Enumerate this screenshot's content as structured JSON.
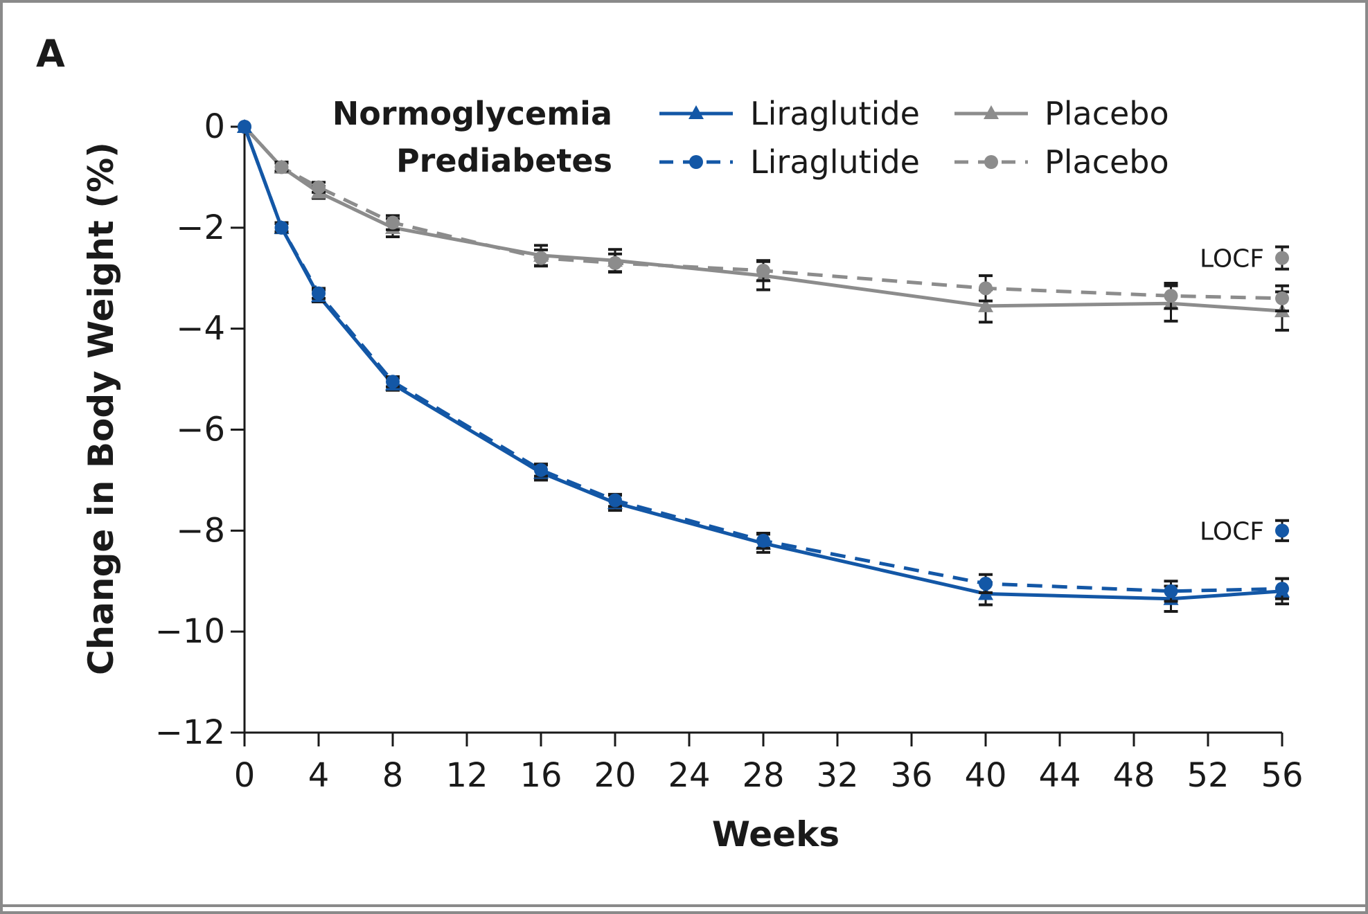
{
  "chart_data": {
    "type": "line",
    "panel_label": "A",
    "title": "",
    "xlabel": "Weeks",
    "ylabel": "Change in Body Weight (%)",
    "xlim": [
      0,
      56
    ],
    "ylim": [
      -12,
      0
    ],
    "x_ticks": [
      0,
      4,
      8,
      12,
      16,
      20,
      24,
      28,
      32,
      36,
      40,
      44,
      48,
      52,
      56
    ],
    "y_ticks": [
      0,
      -2,
      -4,
      -6,
      -8,
      -10,
      -12
    ],
    "y_tick_labels": [
      "0",
      "−2",
      "−4",
      "−6",
      "−8",
      "−10",
      "−12"
    ],
    "grid": false,
    "legend": {
      "position": "top",
      "rows": [
        {
          "header": "Normoglycemia",
          "style": "solid",
          "marker": "triangle"
        },
        {
          "header": "Prediabetes",
          "style": "dashed",
          "marker": "circle"
        }
      ]
    },
    "colors": {
      "liraglutide": "#1357a6",
      "placebo": "#8c8c8c",
      "error_bar": "#1a1a1a",
      "axis": "#1a1a1a"
    },
    "series": [
      {
        "name": "Liraglutide",
        "group": "Normoglycemia",
        "color_key": "liraglutide",
        "style": "solid",
        "marker": "triangle",
        "x": [
          0,
          2,
          4,
          8,
          16,
          20,
          28,
          40,
          50,
          56
        ],
        "y": [
          0,
          -2.0,
          -3.35,
          -5.1,
          -6.85,
          -7.45,
          -8.25,
          -9.25,
          -9.35,
          -9.2
        ],
        "err": [
          0,
          0.1,
          0.12,
          0.12,
          0.15,
          0.15,
          0.18,
          0.22,
          0.25,
          0.25
        ]
      },
      {
        "name": "Liraglutide",
        "group": "Prediabetes",
        "color_key": "liraglutide",
        "style": "dashed",
        "marker": "circle",
        "x": [
          0,
          2,
          4,
          8,
          16,
          20,
          28,
          40,
          50,
          56
        ],
        "y": [
          0,
          -2.0,
          -3.3,
          -5.05,
          -6.8,
          -7.4,
          -8.2,
          -9.05,
          -9.2,
          -9.15
        ],
        "err": [
          0,
          0.08,
          0.1,
          0.1,
          0.12,
          0.12,
          0.15,
          0.18,
          0.2,
          0.2
        ]
      },
      {
        "name": "Placebo",
        "group": "Normoglycemia",
        "color_key": "placebo",
        "style": "solid",
        "marker": "triangle",
        "x": [
          0,
          2,
          4,
          8,
          16,
          20,
          28,
          40,
          50,
          56
        ],
        "y": [
          0,
          -0.8,
          -1.3,
          -2.0,
          -2.55,
          -2.65,
          -2.95,
          -3.55,
          -3.5,
          -3.65
        ],
        "err": [
          0,
          0.1,
          0.12,
          0.18,
          0.2,
          0.22,
          0.28,
          0.32,
          0.35,
          0.38
        ]
      },
      {
        "name": "Placebo",
        "group": "Prediabetes",
        "color_key": "placebo",
        "style": "dashed",
        "marker": "circle",
        "x": [
          0,
          2,
          4,
          8,
          16,
          20,
          28,
          40,
          50,
          56
        ],
        "y": [
          0,
          -0.8,
          -1.2,
          -1.9,
          -2.6,
          -2.7,
          -2.85,
          -3.2,
          -3.35,
          -3.4
        ],
        "err": [
          0,
          0.08,
          0.1,
          0.14,
          0.16,
          0.18,
          0.2,
          0.25,
          0.25,
          0.25
        ]
      }
    ],
    "locf": [
      {
        "label": "LOCF",
        "color_key": "placebo",
        "x": 56,
        "y": -2.6,
        "err": 0.22
      },
      {
        "label": "LOCF",
        "color_key": "liraglutide",
        "x": 56,
        "y": -8.0,
        "err": 0.2
      }
    ]
  }
}
